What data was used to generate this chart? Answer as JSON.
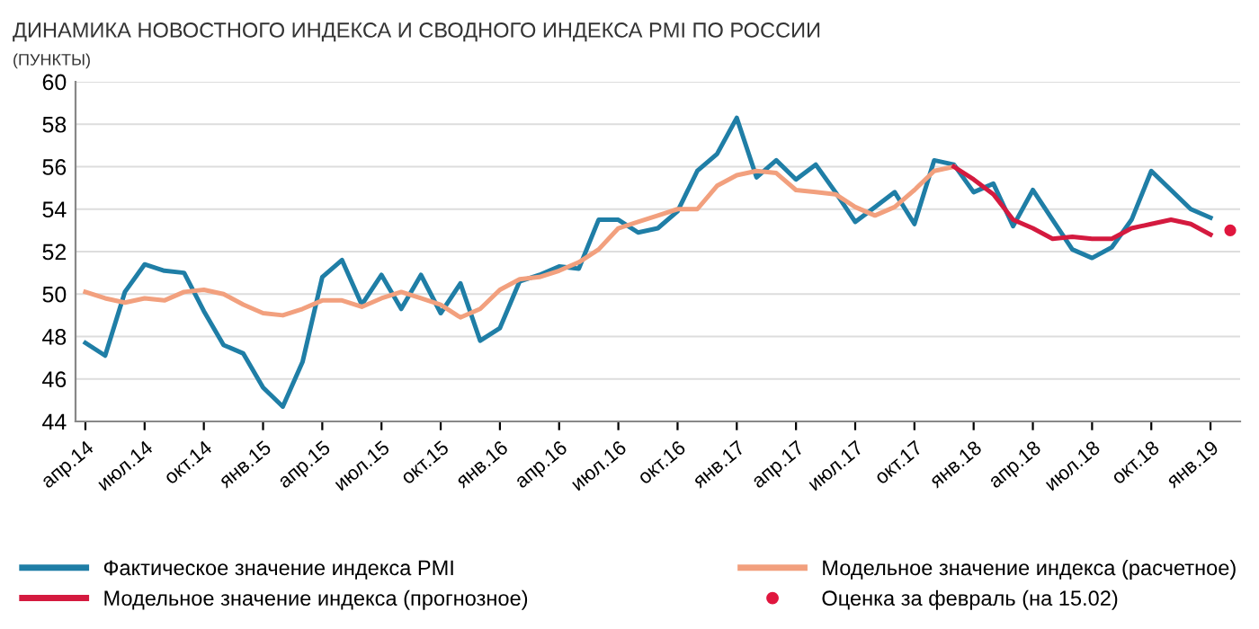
{
  "chart_data": {
    "type": "line",
    "title": "ДИНАМИКА НОВОСТНОГО ИНДЕКСА И СВОДНОГО ИНДЕКСА PMI ПО РОССИИ",
    "subtitle": "(ПУНКТЫ)",
    "categories": [
      "апр.14",
      null,
      null,
      "июл.14",
      null,
      null,
      "окт.14",
      null,
      null,
      "янв.15",
      null,
      null,
      "апр.15",
      null,
      null,
      "июл.15",
      null,
      null,
      "окт.15",
      null,
      null,
      "янв.16",
      null,
      null,
      "апр.16",
      null,
      null,
      "июл.16",
      null,
      null,
      "окт.16",
      null,
      null,
      "янв.17",
      null,
      null,
      "апр.17",
      null,
      null,
      "июл.17",
      null,
      null,
      "окт.17",
      null,
      null,
      "янв.18",
      null,
      null,
      "апр.18",
      null,
      null,
      "июл.18",
      null,
      null,
      "окт.18",
      null,
      null,
      "янв.19",
      null
    ],
    "series": [
      {
        "name": "Фактическое значение индекса PMI",
        "color": "#1f7ea6",
        "values": [
          47.7,
          47.1,
          50.1,
          51.4,
          51.1,
          51.0,
          49.2,
          47.6,
          47.2,
          45.6,
          44.7,
          46.8,
          50.8,
          51.6,
          49.5,
          50.9,
          49.3,
          50.9,
          49.1,
          50.5,
          47.8,
          48.4,
          50.6,
          50.9,
          51.3,
          51.2,
          53.5,
          53.5,
          52.9,
          53.1,
          53.9,
          55.8,
          56.6,
          58.3,
          55.5,
          56.3,
          55.4,
          56.1,
          54.8,
          53.4,
          54.1,
          54.8,
          53.3,
          56.3,
          56.1,
          54.8,
          55.2,
          53.2,
          54.9,
          53.5,
          52.1,
          51.7,
          52.2,
          53.5,
          55.8,
          54.9,
          54.0,
          53.6,
          null
        ]
      },
      {
        "name": "Модельное значение индекса (расчетное)",
        "color": "#f2a07e",
        "values": [
          50.1,
          49.8,
          49.6,
          49.8,
          49.7,
          50.1,
          50.2,
          50.0,
          49.5,
          49.1,
          49.0,
          49.3,
          49.7,
          49.7,
          49.4,
          49.8,
          50.1,
          49.8,
          49.5,
          48.9,
          49.3,
          50.2,
          50.7,
          50.8,
          51.1,
          51.5,
          52.1,
          53.1,
          53.4,
          53.7,
          54.0,
          54.0,
          55.1,
          55.6,
          55.8,
          55.7,
          54.9,
          54.8,
          54.7,
          54.1,
          53.7,
          54.1,
          54.9,
          55.8,
          56.0,
          null,
          null,
          null,
          null,
          null,
          null,
          null,
          null,
          null,
          null,
          null,
          null,
          null,
          null
        ]
      },
      {
        "name": "Модельное значение индекса (прогнозное)",
        "color": "#d41a3f",
        "values": [
          null,
          null,
          null,
          null,
          null,
          null,
          null,
          null,
          null,
          null,
          null,
          null,
          null,
          null,
          null,
          null,
          null,
          null,
          null,
          null,
          null,
          null,
          null,
          null,
          null,
          null,
          null,
          null,
          null,
          null,
          null,
          null,
          null,
          null,
          null,
          null,
          null,
          null,
          null,
          null,
          null,
          null,
          null,
          null,
          56.0,
          55.4,
          54.7,
          53.5,
          53.1,
          52.6,
          52.7,
          52.6,
          52.6,
          53.1,
          53.3,
          53.5,
          53.3,
          52.8,
          null
        ]
      },
      {
        "name": "Оценка за февраль (на 15.02)",
        "type": "scatter",
        "marker": "circle",
        "color": "#e0163e",
        "values": [
          null,
          null,
          null,
          null,
          null,
          null,
          null,
          null,
          null,
          null,
          null,
          null,
          null,
          null,
          null,
          null,
          null,
          null,
          null,
          null,
          null,
          null,
          null,
          null,
          null,
          null,
          null,
          null,
          null,
          null,
          null,
          null,
          null,
          null,
          null,
          null,
          null,
          null,
          null,
          null,
          null,
          null,
          null,
          null,
          null,
          null,
          null,
          null,
          null,
          null,
          null,
          null,
          null,
          null,
          null,
          null,
          null,
          null,
          53.0
        ]
      }
    ],
    "ylim": [
      44,
      60
    ],
    "yticks": [
      44,
      46,
      48,
      50,
      52,
      54,
      56,
      58,
      60
    ],
    "grid": "y",
    "legend": "bottom",
    "marker": "none",
    "line_style": "solid"
  }
}
